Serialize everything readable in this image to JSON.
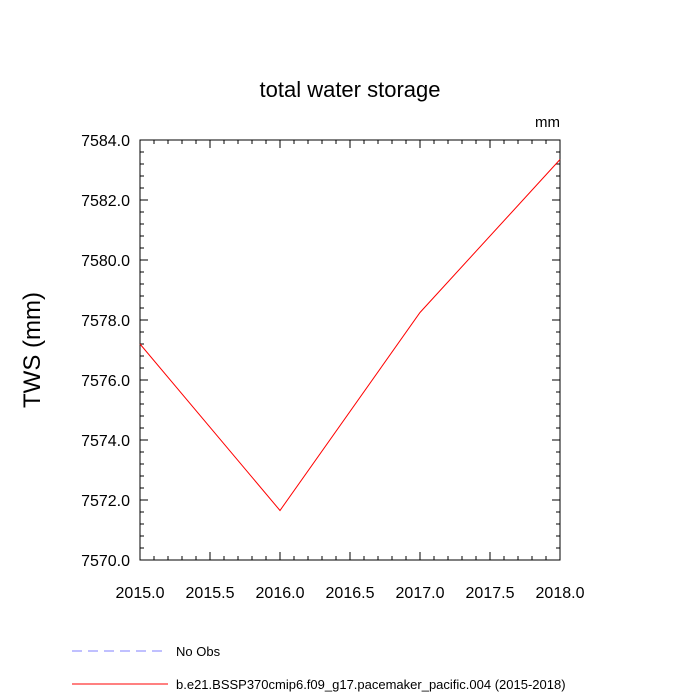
{
  "chart_data": {
    "type": "line",
    "title": "total water storage",
    "units_label": "mm",
    "xlabel": "",
    "ylabel": "TWS  (mm)",
    "xlim": [
      2015.0,
      2018.0
    ],
    "ylim": [
      7570.0,
      7584.0
    ],
    "x_ticks": [
      2015.0,
      2015.5,
      2016.0,
      2016.5,
      2017.0,
      2017.5,
      2018.0
    ],
    "x_tick_labels": [
      "2015.0",
      "2015.5",
      "2016.0",
      "2016.5",
      "2017.0",
      "2017.5",
      "2018.0"
    ],
    "y_ticks": [
      7570.0,
      7572.0,
      7574.0,
      7576.0,
      7578.0,
      7580.0,
      7582.0,
      7584.0
    ],
    "y_tick_labels": [
      "7570.0",
      "7572.0",
      "7574.0",
      "7576.0",
      "7578.0",
      "7580.0",
      "7582.0",
      "7584.0"
    ],
    "series": [
      {
        "name": "b.e21.BSSP370cmip6.f09_g17.pacemaker_pacific.004 (2015-2018)",
        "color": "#ff0000",
        "dash": "solid",
        "x": [
          2015.0,
          2016.0,
          2017.0,
          2018.0
        ],
        "values": [
          7577.2,
          7571.65,
          7578.25,
          7583.35
        ]
      },
      {
        "name": "No Obs",
        "color": "#8080ff",
        "dash": "dashed",
        "x": [],
        "values": []
      }
    ],
    "legend": [
      "No Obs",
      "b.e21.BSSP370cmip6.f09_g17.pacemaker_pacific.004 (2015-2018)"
    ],
    "legend_position": "bottom"
  }
}
